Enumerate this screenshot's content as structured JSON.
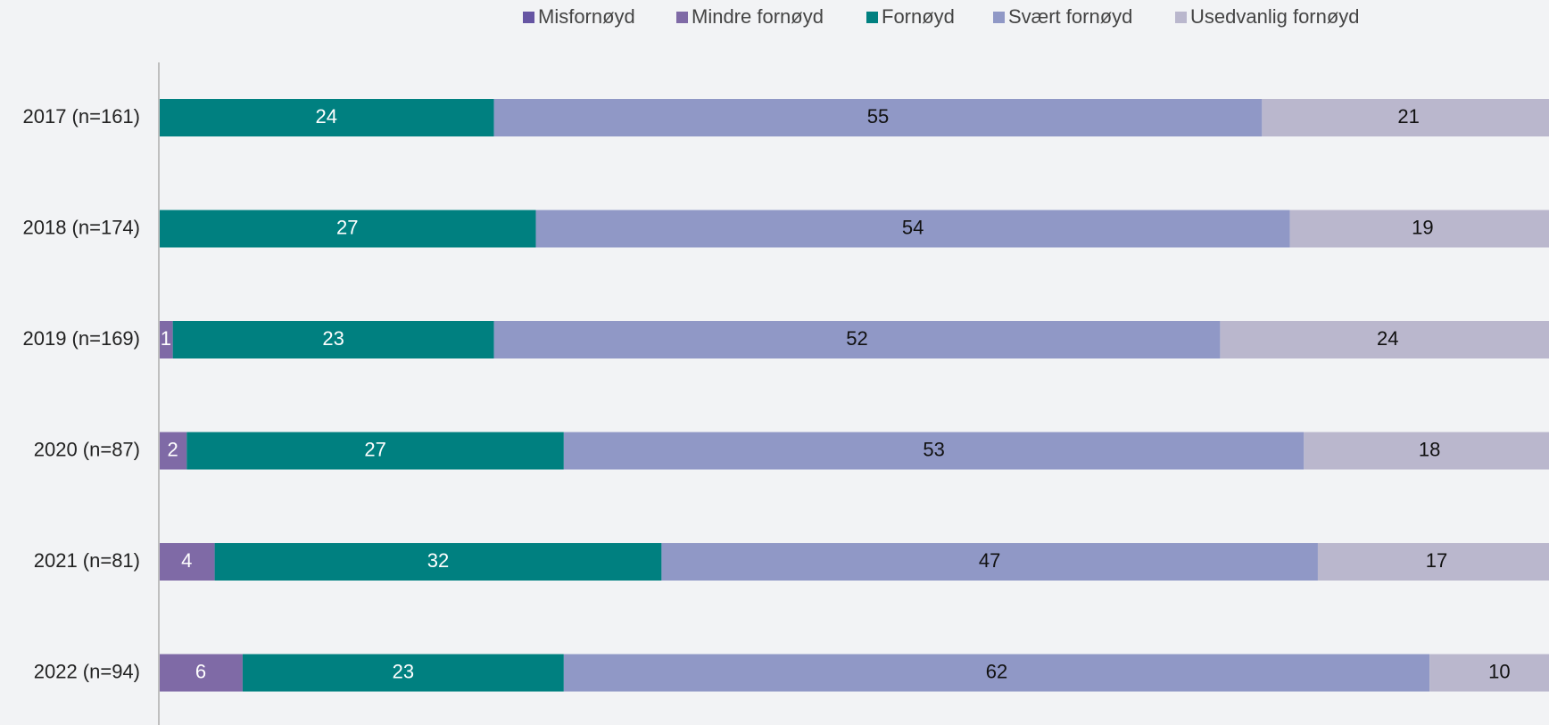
{
  "chart_data": {
    "type": "stacked-bar-horizontal",
    "categories": [
      "2017 (n=161)",
      "2018 (n=174)",
      "2019 (n=169)",
      "2020 (n=87)",
      "2021 (n=81)",
      "2022 (n=94)"
    ],
    "series": [
      {
        "name": "Misfornøyd",
        "color": "#6655a3",
        "values": [
          0,
          0,
          0,
          0,
          0,
          0
        ]
      },
      {
        "name": "Mindre fornøyd",
        "color": "#7f6aa6",
        "values": [
          0,
          0,
          1,
          2,
          4,
          6
        ]
      },
      {
        "name": "Fornøyd",
        "color": "#008080",
        "values": [
          24,
          27,
          23,
          27,
          32,
          23
        ]
      },
      {
        "name": "Svært fornøyd",
        "color": "#9098c6",
        "values": [
          55,
          54,
          52,
          53,
          47,
          62
        ]
      },
      {
        "name": "Usedvanlig fornøyd",
        "color": "#bab7cd",
        "values": [
          21,
          19,
          24,
          18,
          17,
          10
        ]
      }
    ],
    "xlim": [
      0,
      100
    ],
    "legend": "top"
  }
}
